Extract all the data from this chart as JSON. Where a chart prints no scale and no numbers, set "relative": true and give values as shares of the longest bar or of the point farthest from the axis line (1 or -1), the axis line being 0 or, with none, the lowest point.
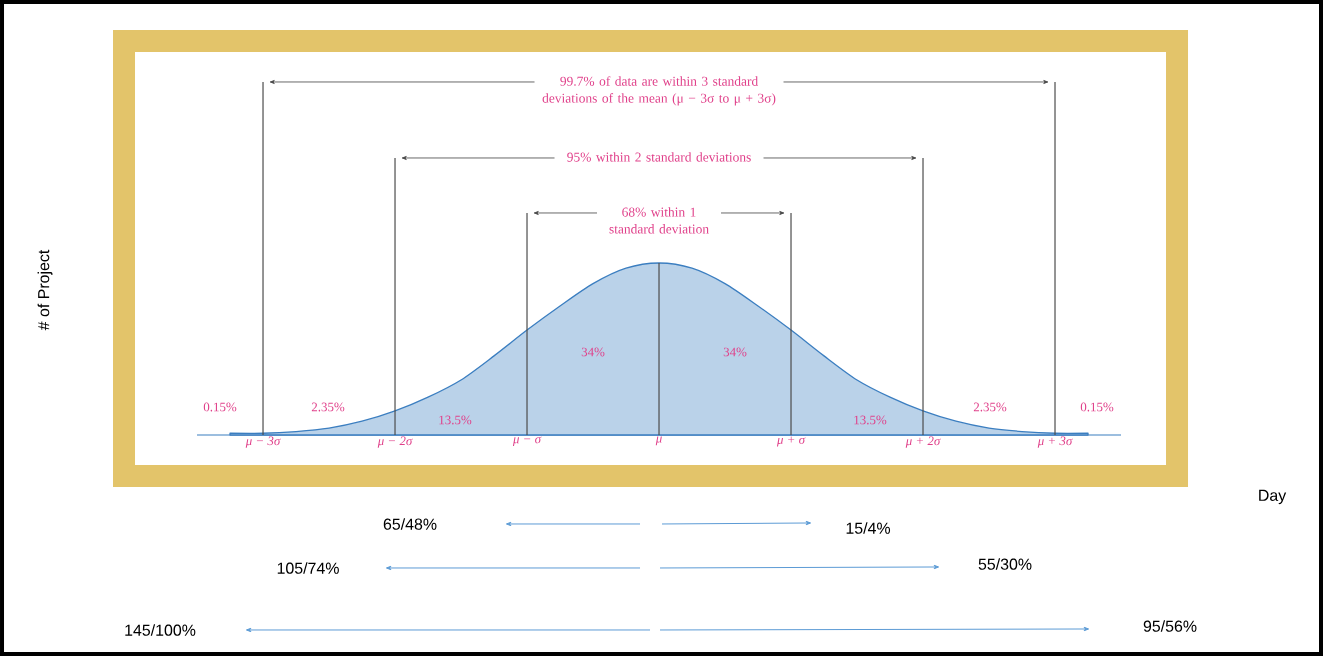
{
  "chart_data": {
    "type": "area",
    "relative": true,
    "color": "#3b7ec0",
    "marker": "none",
    "line_style": "solid",
    "x": [
      -3.25,
      -3.0,
      -2.75,
      -2.5,
      -2.25,
      -2.0,
      -1.75,
      -1.5,
      -1.25,
      -1.0,
      -0.75,
      -0.5,
      -0.25,
      0,
      0.25,
      0.5,
      0.75,
      1.0,
      1.25,
      1.5,
      1.75,
      2.0,
      2.25,
      2.5,
      2.75,
      3.0,
      3.25
    ],
    "values": [
      0.01,
      0.01,
      0.02,
      0.04,
      0.08,
      0.14,
      0.22,
      0.32,
      0.46,
      0.61,
      0.75,
      0.88,
      0.97,
      1,
      0.97,
      0.88,
      0.75,
      0.61,
      0.46,
      0.32,
      0.22,
      0.14,
      0.08,
      0.04,
      0.02,
      0.01,
      0.01
    ],
    "xlim": [
      -3.5,
      3.5
    ],
    "xticks": [
      {
        "value": -3,
        "label": "μ − 3σ"
      },
      {
        "value": -2,
        "label": "μ − 2σ"
      },
      {
        "value": -1,
        "label": "μ − σ"
      },
      {
        "value": 0,
        "label": "μ"
      },
      {
        "value": 1,
        "label": "μ + σ"
      },
      {
        "value": 2,
        "label": "μ + 2σ"
      },
      {
        "value": 3,
        "label": "μ + 3σ"
      }
    ],
    "ref_lines": [
      {
        "axis": "x",
        "value": -3
      },
      {
        "axis": "x",
        "value": -2
      },
      {
        "axis": "x",
        "value": -1
      },
      {
        "axis": "x",
        "value": 0
      },
      {
        "axis": "x",
        "value": 1
      },
      {
        "axis": "x",
        "value": 2
      },
      {
        "axis": "x",
        "value": 3
      }
    ],
    "annotations": [
      "99.7% of data are within 3 standard deviations of the mean (μ − 3σ to μ + 3σ)",
      "95% within 2 standard deviations",
      "68% within 1 standard deviation",
      "# of Project",
      "0.15%",
      "2.35%",
      "13.5%",
      "34%",
      "34%",
      "13.5%",
      "2.35%",
      "0.15%",
      "Day",
      "65/48%",
      "15/4%",
      "105/74%",
      "55/30%",
      "145/100%",
      "95/56%"
    ]
  }
}
